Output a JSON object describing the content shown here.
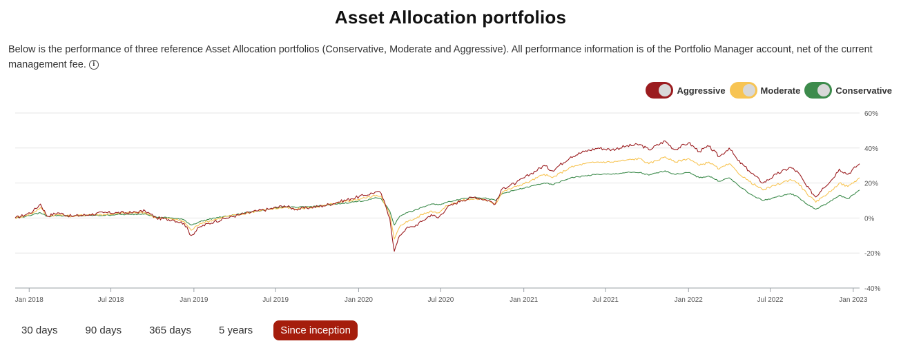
{
  "page": {
    "title": "Asset Allocation portfolios",
    "description": "Below is the performance of three reference Asset Allocation portfolios (Conservative, Moderate and Aggressive). All performance information is of the Portfolio Manager account, net of the current management fee.",
    "info_icon": "info-icon",
    "info_glyph": "i"
  },
  "legend": [
    {
      "label": "Aggressive",
      "color": "#9b1c1f"
    },
    {
      "label": "Moderate",
      "color": "#f7c453"
    },
    {
      "label": "Conservative",
      "color": "#3d8b4c"
    }
  ],
  "range_tabs": [
    {
      "label": "30 days",
      "active": false
    },
    {
      "label": "90 days",
      "active": false
    },
    {
      "label": "365 days",
      "active": false
    },
    {
      "label": "5 years",
      "active": false
    },
    {
      "label": "Since inception",
      "active": true
    }
  ],
  "chart_data": {
    "type": "line",
    "y_axis_position": "right",
    "ylim": [
      -40,
      60
    ],
    "xlim": [
      "2017-12-01",
      "2023-01-15"
    ],
    "grid": true,
    "legend_position": "top-right",
    "y_ticks": [
      "60%",
      "40%",
      "20%",
      "0%",
      "-20%",
      "-40%"
    ],
    "y_tick_values": [
      60,
      40,
      20,
      0,
      -20,
      -40
    ],
    "x_ticks": [
      {
        "label": "Jan 2018",
        "date": "2018-01-01"
      },
      {
        "label": "Jul 2018",
        "date": "2018-07-01"
      },
      {
        "label": "Jan 2019",
        "date": "2019-01-01"
      },
      {
        "label": "Jul 2019",
        "date": "2019-07-01"
      },
      {
        "label": "Jan 2020",
        "date": "2020-01-01"
      },
      {
        "label": "Jul 2020",
        "date": "2020-07-01"
      },
      {
        "label": "Jan 2021",
        "date": "2021-01-01"
      },
      {
        "label": "Jul 2021",
        "date": "2021-07-01"
      },
      {
        "label": "Jan 2022",
        "date": "2022-01-01"
      },
      {
        "label": "Jul 2022",
        "date": "2022-07-01"
      },
      {
        "label": "Jan 2023",
        "date": "2023-01-01"
      }
    ],
    "series": [
      {
        "name": "Aggressive",
        "color": "#9b1c1f",
        "points": [
          [
            "2017-12-01",
            0
          ],
          [
            "2017-12-25",
            2
          ],
          [
            "2018-01-10",
            4
          ],
          [
            "2018-01-26",
            8
          ],
          [
            "2018-02-10",
            1
          ],
          [
            "2018-03-05",
            3
          ],
          [
            "2018-04-05",
            1
          ],
          [
            "2018-05-15",
            2
          ],
          [
            "2018-06-15",
            3
          ],
          [
            "2018-07-15",
            3
          ],
          [
            "2018-08-15",
            3
          ],
          [
            "2018-09-15",
            4
          ],
          [
            "2018-10-10",
            0
          ],
          [
            "2018-11-15",
            -1
          ],
          [
            "2018-12-10",
            -3
          ],
          [
            "2018-12-26",
            -10
          ],
          [
            "2019-01-15",
            -5
          ],
          [
            "2019-02-15",
            -2
          ],
          [
            "2019-03-15",
            0
          ],
          [
            "2019-04-15",
            2
          ],
          [
            "2019-05-20",
            4
          ],
          [
            "2019-06-15",
            5
          ],
          [
            "2019-07-20",
            7
          ],
          [
            "2019-08-15",
            5
          ],
          [
            "2019-09-15",
            6
          ],
          [
            "2019-10-15",
            7
          ],
          [
            "2019-11-15",
            9
          ],
          [
            "2019-12-15",
            11
          ],
          [
            "2020-01-15",
            13
          ],
          [
            "2020-02-10",
            15
          ],
          [
            "2020-02-20",
            14
          ],
          [
            "2020-03-10",
            0
          ],
          [
            "2020-03-20",
            -19
          ],
          [
            "2020-04-01",
            -10
          ],
          [
            "2020-04-15",
            -6
          ],
          [
            "2020-05-01",
            -5
          ],
          [
            "2020-05-20",
            -2
          ],
          [
            "2020-06-10",
            2
          ],
          [
            "2020-06-25",
            0
          ],
          [
            "2020-07-15",
            6
          ],
          [
            "2020-08-15",
            10
          ],
          [
            "2020-09-15",
            12
          ],
          [
            "2020-10-15",
            10
          ],
          [
            "2020-10-30",
            8
          ],
          [
            "2020-11-15",
            17
          ],
          [
            "2020-12-15",
            20
          ],
          [
            "2021-01-15",
            25
          ],
          [
            "2021-02-15",
            30
          ],
          [
            "2021-03-05",
            27
          ],
          [
            "2021-04-15",
            35
          ],
          [
            "2021-05-15",
            38
          ],
          [
            "2021-06-15",
            40
          ],
          [
            "2021-07-15",
            39
          ],
          [
            "2021-08-15",
            41
          ],
          [
            "2021-09-15",
            42
          ],
          [
            "2021-10-05",
            39
          ],
          [
            "2021-11-10",
            44
          ],
          [
            "2021-12-01",
            39
          ],
          [
            "2022-01-01",
            43
          ],
          [
            "2022-01-25",
            38
          ],
          [
            "2022-02-15",
            41
          ],
          [
            "2022-03-10",
            35
          ],
          [
            "2022-04-01",
            40
          ],
          [
            "2022-04-20",
            33
          ],
          [
            "2022-05-15",
            27
          ],
          [
            "2022-06-15",
            20
          ],
          [
            "2022-07-15",
            25
          ],
          [
            "2022-08-15",
            29
          ],
          [
            "2022-09-01",
            26
          ],
          [
            "2022-09-20",
            18
          ],
          [
            "2022-10-10",
            12
          ],
          [
            "2022-10-25",
            17
          ],
          [
            "2022-11-15",
            22
          ],
          [
            "2022-12-01",
            28
          ],
          [
            "2022-12-20",
            25
          ],
          [
            "2023-01-10",
            30
          ],
          [
            "2023-01-15",
            31
          ]
        ]
      },
      {
        "name": "Moderate",
        "color": "#f7c453",
        "points": [
          [
            "2017-12-01",
            0
          ],
          [
            "2017-12-25",
            1.5
          ],
          [
            "2018-01-10",
            3
          ],
          [
            "2018-01-26",
            6
          ],
          [
            "2018-02-10",
            1
          ],
          [
            "2018-03-05",
            2
          ],
          [
            "2018-04-05",
            1
          ],
          [
            "2018-05-15",
            2
          ],
          [
            "2018-06-15",
            2
          ],
          [
            "2018-07-15",
            2.5
          ],
          [
            "2018-08-15",
            3
          ],
          [
            "2018-09-15",
            3
          ],
          [
            "2018-10-10",
            0
          ],
          [
            "2018-11-15",
            -0.5
          ],
          [
            "2018-12-10",
            -2
          ],
          [
            "2018-12-26",
            -7
          ],
          [
            "2019-01-15",
            -3
          ],
          [
            "2019-02-15",
            -1
          ],
          [
            "2019-03-15",
            1
          ],
          [
            "2019-04-15",
            2
          ],
          [
            "2019-05-20",
            4
          ],
          [
            "2019-06-15",
            5
          ],
          [
            "2019-07-20",
            6
          ],
          [
            "2019-08-15",
            5
          ],
          [
            "2019-09-15",
            6
          ],
          [
            "2019-10-15",
            7
          ],
          [
            "2019-11-15",
            8.5
          ],
          [
            "2019-12-15",
            10
          ],
          [
            "2020-01-15",
            11.5
          ],
          [
            "2020-02-10",
            13
          ],
          [
            "2020-02-20",
            12.5
          ],
          [
            "2020-03-10",
            2
          ],
          [
            "2020-03-20",
            -12
          ],
          [
            "2020-04-01",
            -5
          ],
          [
            "2020-04-15",
            -2
          ],
          [
            "2020-05-01",
            -1
          ],
          [
            "2020-05-20",
            2
          ],
          [
            "2020-06-10",
            4
          ],
          [
            "2020-06-25",
            3
          ],
          [
            "2020-07-15",
            7
          ],
          [
            "2020-08-15",
            10
          ],
          [
            "2020-09-15",
            11
          ],
          [
            "2020-10-15",
            10
          ],
          [
            "2020-10-30",
            8
          ],
          [
            "2020-11-15",
            15
          ],
          [
            "2020-12-15",
            18
          ],
          [
            "2021-01-15",
            21
          ],
          [
            "2021-02-15",
            25
          ],
          [
            "2021-03-05",
            23
          ],
          [
            "2021-04-15",
            29
          ],
          [
            "2021-05-15",
            31
          ],
          [
            "2021-06-15",
            32
          ],
          [
            "2021-07-15",
            32
          ],
          [
            "2021-08-15",
            33
          ],
          [
            "2021-09-15",
            34
          ],
          [
            "2021-10-05",
            31
          ],
          [
            "2021-11-10",
            35
          ],
          [
            "2021-12-01",
            32
          ],
          [
            "2022-01-01",
            34
          ],
          [
            "2022-01-25",
            30
          ],
          [
            "2022-02-15",
            32
          ],
          [
            "2022-03-10",
            28
          ],
          [
            "2022-04-01",
            31
          ],
          [
            "2022-04-20",
            26
          ],
          [
            "2022-05-15",
            21
          ],
          [
            "2022-06-15",
            16
          ],
          [
            "2022-07-15",
            19
          ],
          [
            "2022-08-15",
            22
          ],
          [
            "2022-09-01",
            20
          ],
          [
            "2022-09-20",
            14
          ],
          [
            "2022-10-10",
            9
          ],
          [
            "2022-10-25",
            12
          ],
          [
            "2022-11-15",
            16
          ],
          [
            "2022-12-01",
            20
          ],
          [
            "2022-12-20",
            18
          ],
          [
            "2023-01-10",
            22
          ],
          [
            "2023-01-15",
            23
          ]
        ]
      },
      {
        "name": "Conservative",
        "color": "#3d8b4c",
        "points": [
          [
            "2017-12-01",
            0
          ],
          [
            "2017-12-25",
            1
          ],
          [
            "2018-01-10",
            2
          ],
          [
            "2018-01-26",
            3
          ],
          [
            "2018-02-10",
            1
          ],
          [
            "2018-03-05",
            1.5
          ],
          [
            "2018-04-05",
            1
          ],
          [
            "2018-05-15",
            1.5
          ],
          [
            "2018-06-15",
            1.5
          ],
          [
            "2018-07-15",
            2
          ],
          [
            "2018-08-15",
            2
          ],
          [
            "2018-09-15",
            2.5
          ],
          [
            "2018-10-10",
            0.5
          ],
          [
            "2018-11-15",
            0
          ],
          [
            "2018-12-10",
            -1
          ],
          [
            "2018-12-26",
            -4
          ],
          [
            "2019-01-15",
            -2
          ],
          [
            "2019-02-15",
            0
          ],
          [
            "2019-03-15",
            1
          ],
          [
            "2019-04-15",
            2.5
          ],
          [
            "2019-05-20",
            4
          ],
          [
            "2019-06-15",
            5
          ],
          [
            "2019-07-20",
            6.5
          ],
          [
            "2019-08-15",
            6
          ],
          [
            "2019-09-15",
            6.5
          ],
          [
            "2019-10-15",
            7
          ],
          [
            "2019-11-15",
            8
          ],
          [
            "2019-12-15",
            9
          ],
          [
            "2020-01-15",
            10
          ],
          [
            "2020-02-10",
            11.5
          ],
          [
            "2020-02-20",
            11
          ],
          [
            "2020-03-10",
            4
          ],
          [
            "2020-03-20",
            -4
          ],
          [
            "2020-04-01",
            1
          ],
          [
            "2020-04-15",
            3
          ],
          [
            "2020-05-01",
            4
          ],
          [
            "2020-05-20",
            6
          ],
          [
            "2020-06-10",
            8
          ],
          [
            "2020-06-25",
            7.5
          ],
          [
            "2020-07-15",
            9
          ],
          [
            "2020-08-15",
            11
          ],
          [
            "2020-09-15",
            12
          ],
          [
            "2020-10-15",
            11
          ],
          [
            "2020-10-30",
            10
          ],
          [
            "2020-11-15",
            14
          ],
          [
            "2020-12-15",
            16
          ],
          [
            "2021-01-15",
            18
          ],
          [
            "2021-02-15",
            20
          ],
          [
            "2021-03-05",
            19
          ],
          [
            "2021-04-15",
            23
          ],
          [
            "2021-05-15",
            24
          ],
          [
            "2021-06-15",
            25
          ],
          [
            "2021-07-15",
            25
          ],
          [
            "2021-08-15",
            26
          ],
          [
            "2021-09-15",
            26
          ],
          [
            "2021-10-05",
            24.5
          ],
          [
            "2021-11-10",
            27
          ],
          [
            "2021-12-01",
            25
          ],
          [
            "2022-01-01",
            26
          ],
          [
            "2022-01-25",
            23
          ],
          [
            "2022-02-15",
            24
          ],
          [
            "2022-03-10",
            21
          ],
          [
            "2022-04-01",
            23
          ],
          [
            "2022-04-20",
            19
          ],
          [
            "2022-05-15",
            14
          ],
          [
            "2022-06-15",
            10
          ],
          [
            "2022-07-15",
            12
          ],
          [
            "2022-08-15",
            14
          ],
          [
            "2022-09-01",
            12
          ],
          [
            "2022-09-20",
            8
          ],
          [
            "2022-10-10",
            5
          ],
          [
            "2022-10-25",
            7
          ],
          [
            "2022-11-15",
            10
          ],
          [
            "2022-12-01",
            13
          ],
          [
            "2022-12-20",
            11
          ],
          [
            "2023-01-10",
            15
          ],
          [
            "2023-01-15",
            16
          ]
        ]
      }
    ]
  }
}
